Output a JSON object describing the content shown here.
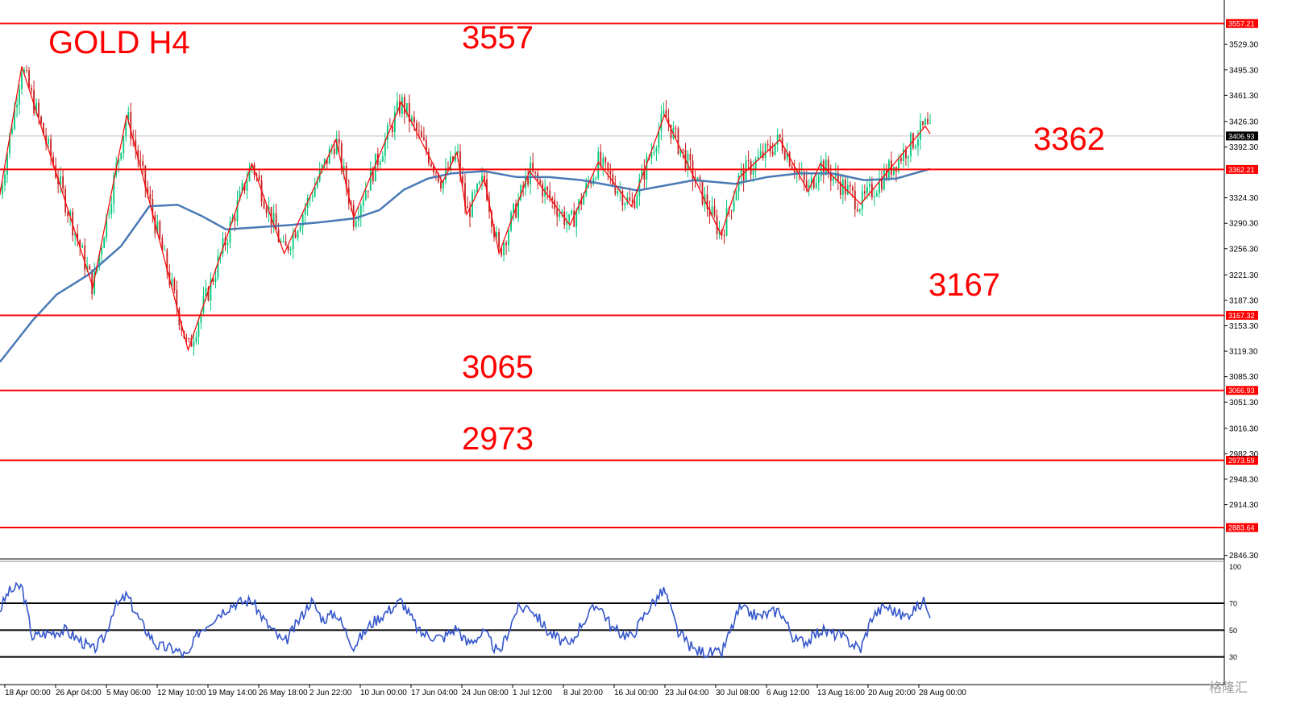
{
  "chart_data": {
    "type": "candlestick",
    "title": "GOLD H4",
    "watermark": "格隆汇",
    "colors": {
      "bull": "#00c878",
      "bear": "#c81e1e",
      "ma": "#4a7ab5",
      "level": "#ff0000",
      "zigzag": "#ff0000",
      "rsi": "#3355cc"
    },
    "ylim": [
      2846,
      3565
    ],
    "y_ticks": [
      "3529.30",
      "3495.30",
      "3461.30",
      "3426.30",
      "3392.30",
      "3324.30",
      "3290.30",
      "3256.30",
      "3221.30",
      "3187.30",
      "3153.30",
      "3119.30",
      "3085.30",
      "3051.30",
      "3016.30",
      "2982.30",
      "2948.30",
      "2914.30",
      "2846.30"
    ],
    "current_price": "3406.93",
    "levels": [
      {
        "label": "3557",
        "price": 3557.21,
        "tag": "3557.21"
      },
      {
        "label": "3362",
        "price": 3362.21,
        "tag": "3362.21"
      },
      {
        "label": "3167",
        "price": 3167.32,
        "tag": "3167.32"
      },
      {
        "label": "3065",
        "price": 3066.93,
        "tag": "3066.93"
      },
      {
        "label": "2973",
        "price": 2973.59,
        "tag": "2973.59"
      },
      {
        "label": "",
        "price": 2883.64,
        "tag": "2883.64"
      }
    ],
    "x_labels": [
      "18 Apr 00:00",
      "26 Apr 04:00",
      "5 May 06:00",
      "12 May 10:00",
      "19 May 14:00",
      "26 May 18:00",
      "2 Jun 22:00",
      "10 Jun 00:00",
      "17 Jun 04:00",
      "24 Jun 08:00",
      "1 Jul 12:00",
      "8 Jul 20:00",
      "16 Jul 00:00",
      "23 Jul 04:00",
      "30 Jul 08:00",
      "6 Aug 12:00",
      "13 Aug 16:00",
      "20 Aug 20:00",
      "28 Aug 00:00"
    ],
    "zigzag": [
      {
        "i": 0,
        "v": 3330
      },
      {
        "i": 27,
        "v": 3500
      },
      {
        "i": 115,
        "v": 3205
      },
      {
        "i": 157,
        "v": 3435
      },
      {
        "i": 233,
        "v": 3121
      },
      {
        "i": 312,
        "v": 3370
      },
      {
        "i": 352,
        "v": 3250
      },
      {
        "i": 416,
        "v": 3402
      },
      {
        "i": 438,
        "v": 3298
      },
      {
        "i": 497,
        "v": 3452
      },
      {
        "i": 548,
        "v": 3345
      },
      {
        "i": 566,
        "v": 3385
      },
      {
        "i": 578,
        "v": 3302
      },
      {
        "i": 600,
        "v": 3350
      },
      {
        "i": 618,
        "v": 3250
      },
      {
        "i": 656,
        "v": 3360
      },
      {
        "i": 706,
        "v": 3288
      },
      {
        "i": 741,
        "v": 3372
      },
      {
        "i": 782,
        "v": 3313
      },
      {
        "i": 823,
        "v": 3435
      },
      {
        "i": 893,
        "v": 3275
      },
      {
        "i": 916,
        "v": 3352
      },
      {
        "i": 966,
        "v": 3402
      },
      {
        "i": 1001,
        "v": 3333
      },
      {
        "i": 1016,
        "v": 3370
      },
      {
        "i": 1066,
        "v": 3316
      },
      {
        "i": 1146,
        "v": 3420
      },
      {
        "i": 1152,
        "v": 3410
      }
    ],
    "ma": [
      {
        "i": 0,
        "v": 3105
      },
      {
        "i": 40,
        "v": 3160
      },
      {
        "i": 70,
        "v": 3195
      },
      {
        "i": 110,
        "v": 3222
      },
      {
        "i": 150,
        "v": 3260
      },
      {
        "i": 185,
        "v": 3313
      },
      {
        "i": 220,
        "v": 3315
      },
      {
        "i": 250,
        "v": 3300
      },
      {
        "i": 280,
        "v": 3282
      },
      {
        "i": 320,
        "v": 3285
      },
      {
        "i": 360,
        "v": 3288
      },
      {
        "i": 400,
        "v": 3292
      },
      {
        "i": 440,
        "v": 3297
      },
      {
        "i": 470,
        "v": 3308
      },
      {
        "i": 500,
        "v": 3335
      },
      {
        "i": 530,
        "v": 3350
      },
      {
        "i": 560,
        "v": 3357
      },
      {
        "i": 600,
        "v": 3360
      },
      {
        "i": 640,
        "v": 3352
      },
      {
        "i": 680,
        "v": 3352
      },
      {
        "i": 720,
        "v": 3348
      },
      {
        "i": 760,
        "v": 3340
      },
      {
        "i": 790,
        "v": 3334
      },
      {
        "i": 820,
        "v": 3340
      },
      {
        "i": 860,
        "v": 3348
      },
      {
        "i": 910,
        "v": 3343
      },
      {
        "i": 950,
        "v": 3352
      },
      {
        "i": 990,
        "v": 3357
      },
      {
        "i": 1030,
        "v": 3357
      },
      {
        "i": 1070,
        "v": 3348
      },
      {
        "i": 1110,
        "v": 3350
      },
      {
        "i": 1152,
        "v": 3363
      }
    ],
    "rsi": {
      "levels": [
        "70",
        "50",
        "30"
      ],
      "top_label": "100",
      "values": [
        {
          "i": 0,
          "v": 65
        },
        {
          "i": 10,
          "v": 78
        },
        {
          "i": 27,
          "v": 83
        },
        {
          "i": 40,
          "v": 45
        },
        {
          "i": 60,
          "v": 48
        },
        {
          "i": 80,
          "v": 50
        },
        {
          "i": 100,
          "v": 42
        },
        {
          "i": 115,
          "v": 35
        },
        {
          "i": 130,
          "v": 45
        },
        {
          "i": 140,
          "v": 65
        },
        {
          "i": 157,
          "v": 76
        },
        {
          "i": 175,
          "v": 55
        },
        {
          "i": 195,
          "v": 38
        },
        {
          "i": 215,
          "v": 36
        },
        {
          "i": 233,
          "v": 30
        },
        {
          "i": 245,
          "v": 48
        },
        {
          "i": 270,
          "v": 62
        },
        {
          "i": 290,
          "v": 70
        },
        {
          "i": 312,
          "v": 72
        },
        {
          "i": 330,
          "v": 55
        },
        {
          "i": 352,
          "v": 40
        },
        {
          "i": 365,
          "v": 52
        },
        {
          "i": 385,
          "v": 72
        },
        {
          "i": 400,
          "v": 58
        },
        {
          "i": 416,
          "v": 63
        },
        {
          "i": 438,
          "v": 38
        },
        {
          "i": 460,
          "v": 55
        },
        {
          "i": 497,
          "v": 72
        },
        {
          "i": 520,
          "v": 48
        },
        {
          "i": 548,
          "v": 44
        },
        {
          "i": 566,
          "v": 52
        },
        {
          "i": 578,
          "v": 40
        },
        {
          "i": 600,
          "v": 48
        },
        {
          "i": 618,
          "v": 32
        },
        {
          "i": 640,
          "v": 65
        },
        {
          "i": 656,
          "v": 68
        },
        {
          "i": 680,
          "v": 48
        },
        {
          "i": 706,
          "v": 38
        },
        {
          "i": 720,
          "v": 55
        },
        {
          "i": 741,
          "v": 70
        },
        {
          "i": 760,
          "v": 50
        },
        {
          "i": 782,
          "v": 45
        },
        {
          "i": 805,
          "v": 68
        },
        {
          "i": 823,
          "v": 80
        },
        {
          "i": 840,
          "v": 48
        },
        {
          "i": 860,
          "v": 35
        },
        {
          "i": 893,
          "v": 32
        },
        {
          "i": 916,
          "v": 66
        },
        {
          "i": 940,
          "v": 60
        },
        {
          "i": 966,
          "v": 65
        },
        {
          "i": 985,
          "v": 42
        },
        {
          "i": 1001,
          "v": 42
        },
        {
          "i": 1016,
          "v": 50
        },
        {
          "i": 1040,
          "v": 46
        },
        {
          "i": 1066,
          "v": 36
        },
        {
          "i": 1080,
          "v": 60
        },
        {
          "i": 1096,
          "v": 68
        },
        {
          "i": 1120,
          "v": 60
        },
        {
          "i": 1146,
          "v": 72
        },
        {
          "i": 1152,
          "v": 63
        }
      ]
    }
  }
}
